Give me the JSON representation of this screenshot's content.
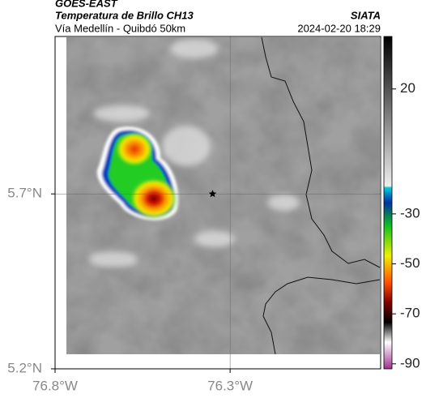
{
  "chart_data": {
    "type": "map",
    "title": "GOES-EAST",
    "subtitle": "Temperatura de Brillo CH13",
    "source": "SIATA",
    "region": "Vía Medellín - Quibdó 50km",
    "timestamp": "2024-02-20 18:29",
    "xlim": [
      -76.8,
      -75.87
    ],
    "xticks": [
      {
        "value": -76.8,
        "label": "76.8°W"
      },
      {
        "value": -76.3,
        "label": "76.3°W"
      }
    ],
    "ylim": [
      5.2,
      6.15
    ],
    "yticks": [
      {
        "value": 5.2,
        "label": "5.2°N"
      },
      {
        "value": 5.7,
        "label": "5.7°N"
      }
    ],
    "clim": [
      -92,
      41
    ],
    "cticks": [
      20,
      -30,
      -50,
      -70,
      -90
    ],
    "point": {
      "lon": -76.35,
      "lat": 5.7
    }
  }
}
